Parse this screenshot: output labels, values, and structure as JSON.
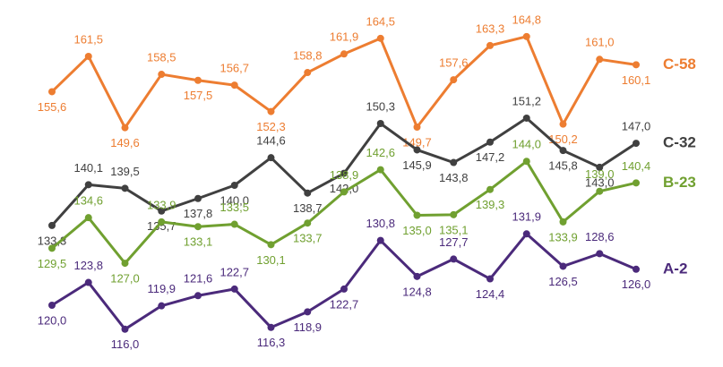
{
  "chart_data": {
    "type": "line",
    "ylim": [
      110,
      170
    ],
    "categories": [
      null,
      null,
      null,
      null,
      null,
      null,
      null,
      null,
      null,
      null,
      null,
      null,
      null,
      null,
      null,
      null,
      null
    ],
    "series": [
      {
        "name": "C-58",
        "color": "#ed7d31",
        "values": [
          155.6,
          161.5,
          149.6,
          158.5,
          157.5,
          156.7,
          152.3,
          158.8,
          161.9,
          164.5,
          149.7,
          157.6,
          163.3,
          164.8,
          150.2,
          161.0,
          160.1
        ],
        "value_labels": [
          "155,6",
          "161,5",
          "149,6",
          "158,5",
          "157,5",
          "156,7",
          "152,3",
          "158,8",
          "161,9",
          "164,5",
          "149,7",
          "157,6",
          "163,3",
          "164,8",
          "150,2",
          "161,0",
          "160,1"
        ]
      },
      {
        "name": "C-32",
        "color": "#404040",
        "values": [
          133.3,
          140.1,
          139.5,
          135.7,
          137.8,
          140.0,
          144.6,
          138.7,
          142.0,
          150.3,
          145.9,
          143.8,
          147.2,
          151.2,
          145.8,
          143.0,
          147.0
        ],
        "value_labels": [
          "133,3",
          "140,1",
          "139,5",
          "135,7",
          "137,8",
          "140,0",
          "144,6",
          "138,7",
          "142,0",
          "150,3",
          "145,9",
          "143,8",
          "147,2",
          "151,2",
          "145,8",
          "143,0",
          "147,0"
        ]
      },
      {
        "name": "B-23",
        "color": "#70a030",
        "values": [
          129.5,
          134.6,
          127.0,
          133.9,
          133.1,
          133.5,
          130.1,
          133.7,
          138.9,
          142.6,
          135.0,
          135.1,
          139.3,
          144.0,
          133.9,
          139.0,
          140.4
        ],
        "value_labels": [
          "129,5",
          "134,6",
          "127,0",
          "133,9",
          "133,1",
          "133,5",
          "130,1",
          "133,7",
          "138,9",
          "142,6",
          "135,0",
          "135,1",
          "139,3",
          "144,0",
          "133,9",
          "139,0",
          "140,4"
        ]
      },
      {
        "name": "A-2",
        "color": "#4b2a7b",
        "values": [
          120.0,
          123.8,
          116.0,
          119.9,
          121.6,
          122.7,
          116.3,
          118.9,
          122.7,
          130.8,
          124.8,
          127.7,
          124.4,
          131.9,
          126.5,
          128.6,
          126.0
        ],
        "value_labels": [
          "120,0",
          "123,8",
          "116,0",
          "119,9",
          "121,6",
          "122,7",
          "116,3",
          "118,9",
          "122,7",
          "130,8",
          "124,8",
          "127,7",
          "124,4",
          "131,9",
          "126,5",
          "128,6",
          "126,0"
        ]
      }
    ]
  }
}
